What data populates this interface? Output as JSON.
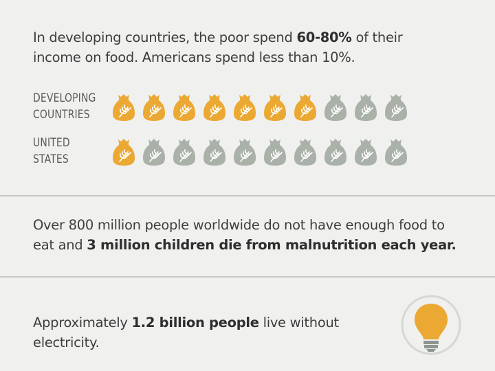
{
  "food_spending": {
    "text_before": "In developing countries, the poor spend ",
    "text_bold": "60-80%",
    "text_after": " of their income on food. Americans spend less than 10%."
  },
  "rows": [
    {
      "label_line1": "DEVELOPING",
      "label_line2": "COUNTRIES",
      "filled": 7,
      "total": 10
    },
    {
      "label_line1": "UNITED",
      "label_line2": "STATES",
      "filled": 1,
      "total": 10
    }
  ],
  "hunger": {
    "text_before": "Over 800 million people worldwide do not have enough food to eat and ",
    "text_bold": "3 million children die from malnutrition each year."
  },
  "electricity": {
    "text_before": "Approximately ",
    "text_bold": "1.2 billion people",
    "text_after": " live without electricity."
  },
  "colors": {
    "filled_bag": "#eba934",
    "empty_bag": "#a9b1a9",
    "bulb": "#eba934",
    "text": "#3d3d3d"
  },
  "icons": {
    "bag": "grain-sack-icon",
    "bulb": "lightbulb-icon"
  }
}
